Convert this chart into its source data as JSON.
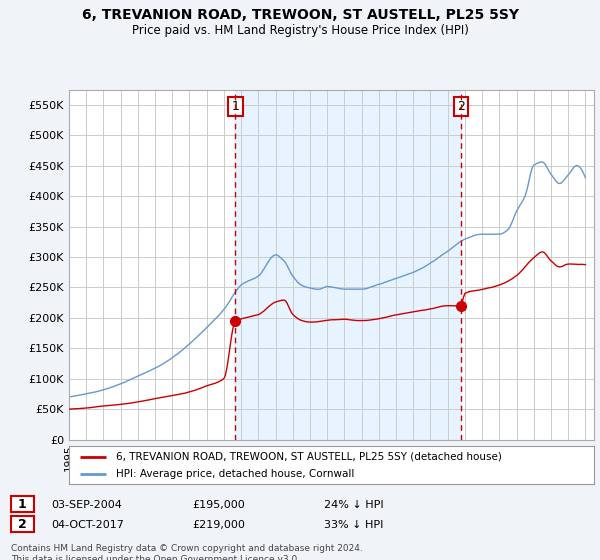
{
  "title": "6, TREVANION ROAD, TREWOON, ST AUSTELL, PL25 5SY",
  "subtitle": "Price paid vs. HM Land Registry's House Price Index (HPI)",
  "legend_line1": "6, TREVANION ROAD, TREWOON, ST AUSTELL, PL25 5SY (detached house)",
  "legend_line2": "HPI: Average price, detached house, Cornwall",
  "footer": "Contains HM Land Registry data © Crown copyright and database right 2024.\nThis data is licensed under the Open Government Licence v3.0.",
  "sale1_date": "03-SEP-2004",
  "sale1_price": 195000,
  "sale1_label": "24% ↓ HPI",
  "sale2_date": "04-OCT-2017",
  "sale2_price": 219000,
  "sale2_label": "33% ↓ HPI",
  "sale1_x": 2004.67,
  "sale2_x": 2017.75,
  "ylim": [
    0,
    575000
  ],
  "yticks": [
    0,
    50000,
    100000,
    150000,
    200000,
    250000,
    300000,
    350000,
    400000,
    450000,
    500000,
    550000
  ],
  "ytick_labels": [
    "£0",
    "£50K",
    "£100K",
    "£150K",
    "£200K",
    "£250K",
    "£300K",
    "£350K",
    "£400K",
    "£450K",
    "£500K",
    "£550K"
  ],
  "red_color": "#cc0000",
  "blue_color": "#6699cc",
  "shade_color": "#ddeeff",
  "bg_color": "#f0f4f8",
  "plot_bg": "#ffffff",
  "grid_color": "#cccccc",
  "xlim_start": 1995,
  "xlim_end": 2025.5
}
